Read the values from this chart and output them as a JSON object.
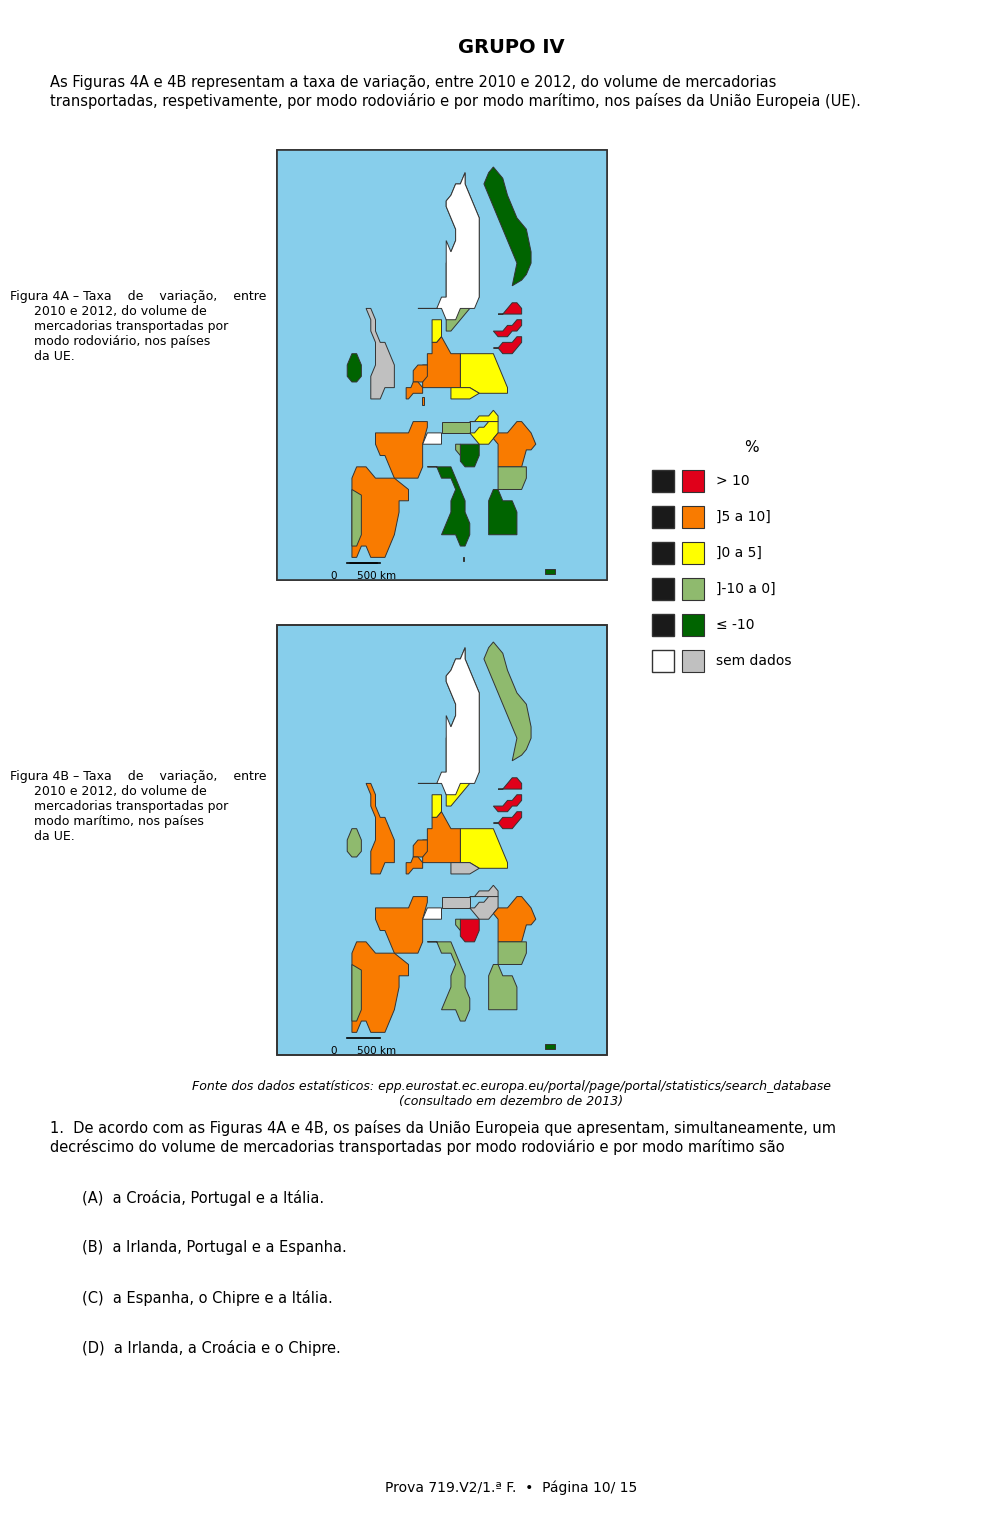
{
  "title": "GRUPO IV",
  "intro_text": "As Figuras 4A e 4B representam a taxa de variação, entre 2010 e 2012, do volume de mercadorias\ntransportadas, respetivamente, por modo rodoviário e por modo marítimo, nos países da União Europeia (UE).",
  "fig4a_caption_left": "Figura 4A – Taxa    de    variação,    entre\n2010 e 2012, do volume de\nmercadorias transportadas por\nmodo rodoviário, nos países\nda UE.",
  "fig4b_caption_left": "Figura 4B – Taxa    de    variação,    entre\n2010 e 2012, do volume de\nmercadorias transportadas por\nmodo marítimo, nos países\nda UE.",
  "legend_title": "%",
  "legend_items": [
    {
      "label": "> 10",
      "color": "#e0001a"
    },
    {
      "label": "]5 a 10]",
      "color": "#f97b00"
    },
    {
      "label": "]0 a 5]",
      "color": "#ffff00"
    },
    {
      "label": "]-10 a 0]",
      "color": "#8fba6e"
    },
    {
      "label": "≤ -10",
      "color": "#006400"
    },
    {
      "label": "sem dados",
      "color": "#c0c0c0"
    }
  ],
  "source_text": "Fonte dos dados estatísticos: epp.eurostat.ec.europa.eu/portal/page/portal/statistics/search_database\n(consultado em dezembro de 2013)",
  "question1": "1.  De acordo com as Figuras 4A e 4B, os países da União Europeia que apresentam, simultaneamente, um\ndecréscimo do volume de mercadorias transportadas por modo rodoviário e por modo marítimo são",
  "option_A": "(A)  a Croácia, Portugal e a Itália.",
  "option_B": "(B)  a Irlanda, Portugal e a Espanha.",
  "option_C": "(C)  a Espanha, o Chipre e a Itália.",
  "option_D": "(D)  a Irlanda, a Croácia e o Chipre.",
  "footer": "Prova 719.V2/1.ª F.  •  Página 10/ 15",
  "map_bg": "#87ceeb",
  "page_bg": "#ffffff",
  "map_border": "#333333",
  "map4a_img_placeholder": true,
  "map4b_img_placeholder": true
}
